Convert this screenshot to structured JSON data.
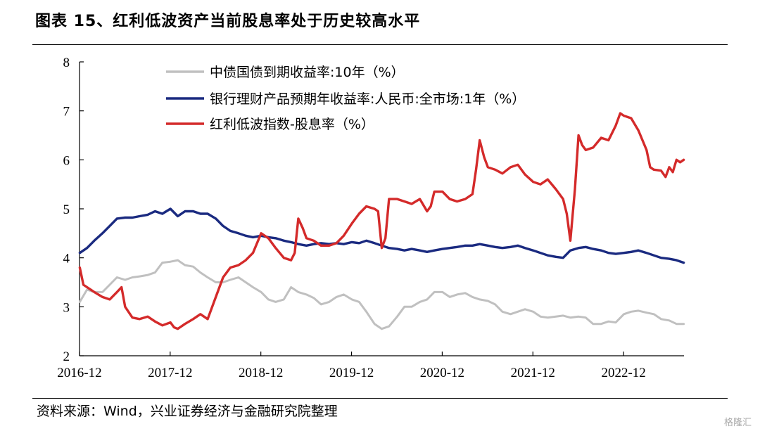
{
  "title": "图表 15、红利低波资产当前股息率处于历史较高水平",
  "source": "资料来源：Wind，兴业证券经济与金融研究院整理",
  "watermark": "格隆汇",
  "chart_data": {
    "type": "line",
    "xlabel": "",
    "ylabel": "",
    "ylim": [
      2,
      8
    ],
    "yticks": [
      "2",
      "3",
      "4",
      "5",
      "6",
      "7",
      "8"
    ],
    "xticks": [
      "2016-12",
      "2017-12",
      "2018-12",
      "2019-12",
      "2020-12",
      "2021-12",
      "2022-12"
    ],
    "xlim": [
      2016.917,
      2023.583
    ],
    "grid": false,
    "legend_position": "top-center",
    "series": [
      {
        "name": "中债国债到期收益率:10年（%）",
        "color": "#c0c0c0",
        "points": [
          [
            2016.92,
            3.1
          ],
          [
            2017.0,
            3.35
          ],
          [
            2017.08,
            3.3
          ],
          [
            2017.17,
            3.3
          ],
          [
            2017.25,
            3.45
          ],
          [
            2017.33,
            3.6
          ],
          [
            2017.42,
            3.55
          ],
          [
            2017.5,
            3.6
          ],
          [
            2017.58,
            3.62
          ],
          [
            2017.67,
            3.65
          ],
          [
            2017.75,
            3.7
          ],
          [
            2017.83,
            3.9
          ],
          [
            2017.92,
            3.92
          ],
          [
            2018.0,
            3.95
          ],
          [
            2018.08,
            3.85
          ],
          [
            2018.17,
            3.82
          ],
          [
            2018.25,
            3.7
          ],
          [
            2018.33,
            3.6
          ],
          [
            2018.42,
            3.5
          ],
          [
            2018.5,
            3.5
          ],
          [
            2018.58,
            3.55
          ],
          [
            2018.67,
            3.6
          ],
          [
            2018.75,
            3.5
          ],
          [
            2018.83,
            3.4
          ],
          [
            2018.92,
            3.3
          ],
          [
            2019.0,
            3.15
          ],
          [
            2019.08,
            3.1
          ],
          [
            2019.17,
            3.15
          ],
          [
            2019.25,
            3.4
          ],
          [
            2019.33,
            3.3
          ],
          [
            2019.42,
            3.25
          ],
          [
            2019.5,
            3.18
          ],
          [
            2019.58,
            3.05
          ],
          [
            2019.67,
            3.1
          ],
          [
            2019.75,
            3.2
          ],
          [
            2019.83,
            3.25
          ],
          [
            2019.92,
            3.15
          ],
          [
            2020.0,
            3.1
          ],
          [
            2020.08,
            2.9
          ],
          [
            2020.17,
            2.65
          ],
          [
            2020.25,
            2.55
          ],
          [
            2020.33,
            2.6
          ],
          [
            2020.42,
            2.8
          ],
          [
            2020.5,
            3.0
          ],
          [
            2020.58,
            3.0
          ],
          [
            2020.67,
            3.1
          ],
          [
            2020.75,
            3.15
          ],
          [
            2020.83,
            3.3
          ],
          [
            2020.92,
            3.3
          ],
          [
            2021.0,
            3.2
          ],
          [
            2021.08,
            3.25
          ],
          [
            2021.17,
            3.28
          ],
          [
            2021.25,
            3.2
          ],
          [
            2021.33,
            3.15
          ],
          [
            2021.42,
            3.12
          ],
          [
            2021.5,
            3.05
          ],
          [
            2021.58,
            2.9
          ],
          [
            2021.67,
            2.85
          ],
          [
            2021.75,
            2.9
          ],
          [
            2021.83,
            2.95
          ],
          [
            2021.92,
            2.9
          ],
          [
            2022.0,
            2.8
          ],
          [
            2022.08,
            2.78
          ],
          [
            2022.17,
            2.8
          ],
          [
            2022.25,
            2.82
          ],
          [
            2022.33,
            2.78
          ],
          [
            2022.42,
            2.8
          ],
          [
            2022.5,
            2.78
          ],
          [
            2022.58,
            2.65
          ],
          [
            2022.67,
            2.65
          ],
          [
            2022.75,
            2.7
          ],
          [
            2022.83,
            2.68
          ],
          [
            2022.92,
            2.85
          ],
          [
            2023.0,
            2.9
          ],
          [
            2023.08,
            2.92
          ],
          [
            2023.17,
            2.88
          ],
          [
            2023.25,
            2.85
          ],
          [
            2023.33,
            2.75
          ],
          [
            2023.42,
            2.72
          ],
          [
            2023.5,
            2.65
          ],
          [
            2023.58,
            2.65
          ]
        ]
      },
      {
        "name": "银行理财产品预期年收益率:人民币:全市场:1年（%）",
        "color": "#1a2a80",
        "points": [
          [
            2016.92,
            4.1
          ],
          [
            2017.0,
            4.2
          ],
          [
            2017.08,
            4.35
          ],
          [
            2017.17,
            4.5
          ],
          [
            2017.25,
            4.65
          ],
          [
            2017.33,
            4.8
          ],
          [
            2017.42,
            4.82
          ],
          [
            2017.5,
            4.82
          ],
          [
            2017.58,
            4.85
          ],
          [
            2017.67,
            4.88
          ],
          [
            2017.75,
            4.95
          ],
          [
            2017.83,
            4.9
          ],
          [
            2017.92,
            5.0
          ],
          [
            2018.0,
            4.85
          ],
          [
            2018.08,
            4.95
          ],
          [
            2018.17,
            4.95
          ],
          [
            2018.25,
            4.9
          ],
          [
            2018.33,
            4.9
          ],
          [
            2018.42,
            4.8
          ],
          [
            2018.5,
            4.65
          ],
          [
            2018.58,
            4.55
          ],
          [
            2018.67,
            4.5
          ],
          [
            2018.75,
            4.45
          ],
          [
            2018.83,
            4.42
          ],
          [
            2018.92,
            4.45
          ],
          [
            2019.0,
            4.42
          ],
          [
            2019.08,
            4.4
          ],
          [
            2019.17,
            4.35
          ],
          [
            2019.25,
            4.32
          ],
          [
            2019.33,
            4.28
          ],
          [
            2019.42,
            4.25
          ],
          [
            2019.5,
            4.28
          ],
          [
            2019.58,
            4.3
          ],
          [
            2019.67,
            4.28
          ],
          [
            2019.75,
            4.3
          ],
          [
            2019.83,
            4.28
          ],
          [
            2019.92,
            4.32
          ],
          [
            2020.0,
            4.3
          ],
          [
            2020.08,
            4.35
          ],
          [
            2020.17,
            4.3
          ],
          [
            2020.25,
            4.25
          ],
          [
            2020.33,
            4.2
          ],
          [
            2020.42,
            4.18
          ],
          [
            2020.5,
            4.15
          ],
          [
            2020.58,
            4.18
          ],
          [
            2020.67,
            4.15
          ],
          [
            2020.75,
            4.12
          ],
          [
            2020.83,
            4.15
          ],
          [
            2020.92,
            4.18
          ],
          [
            2021.0,
            4.2
          ],
          [
            2021.08,
            4.22
          ],
          [
            2021.17,
            4.25
          ],
          [
            2021.25,
            4.25
          ],
          [
            2021.33,
            4.28
          ],
          [
            2021.42,
            4.25
          ],
          [
            2021.5,
            4.22
          ],
          [
            2021.58,
            4.2
          ],
          [
            2021.67,
            4.22
          ],
          [
            2021.75,
            4.25
          ],
          [
            2021.83,
            4.2
          ],
          [
            2021.92,
            4.15
          ],
          [
            2022.0,
            4.1
          ],
          [
            2022.08,
            4.05
          ],
          [
            2022.17,
            4.02
          ],
          [
            2022.25,
            4.0
          ],
          [
            2022.33,
            4.15
          ],
          [
            2022.42,
            4.2
          ],
          [
            2022.5,
            4.22
          ],
          [
            2022.58,
            4.18
          ],
          [
            2022.67,
            4.15
          ],
          [
            2022.75,
            4.1
          ],
          [
            2022.83,
            4.08
          ],
          [
            2022.92,
            4.1
          ],
          [
            2023.0,
            4.12
          ],
          [
            2023.08,
            4.15
          ],
          [
            2023.17,
            4.1
          ],
          [
            2023.25,
            4.05
          ],
          [
            2023.33,
            4.0
          ],
          [
            2023.42,
            3.98
          ],
          [
            2023.5,
            3.95
          ],
          [
            2023.58,
            3.9
          ]
        ]
      },
      {
        "name": "红利低波指数-股息率（%）",
        "color": "#d42a2a",
        "points": [
          [
            2016.92,
            3.8
          ],
          [
            2016.96,
            3.45
          ],
          [
            2017.08,
            3.3
          ],
          [
            2017.17,
            3.2
          ],
          [
            2017.25,
            3.15
          ],
          [
            2017.33,
            3.3
          ],
          [
            2017.38,
            3.4
          ],
          [
            2017.42,
            3.0
          ],
          [
            2017.5,
            2.78
          ],
          [
            2017.58,
            2.75
          ],
          [
            2017.67,
            2.8
          ],
          [
            2017.75,
            2.7
          ],
          [
            2017.83,
            2.62
          ],
          [
            2017.92,
            2.68
          ],
          [
            2017.96,
            2.58
          ],
          [
            2018.0,
            2.55
          ],
          [
            2018.08,
            2.65
          ],
          [
            2018.17,
            2.75
          ],
          [
            2018.25,
            2.85
          ],
          [
            2018.33,
            2.75
          ],
          [
            2018.42,
            3.2
          ],
          [
            2018.5,
            3.6
          ],
          [
            2018.58,
            3.8
          ],
          [
            2018.67,
            3.85
          ],
          [
            2018.75,
            3.95
          ],
          [
            2018.83,
            4.1
          ],
          [
            2018.92,
            4.5
          ],
          [
            2019.0,
            4.4
          ],
          [
            2019.08,
            4.2
          ],
          [
            2019.17,
            4.0
          ],
          [
            2019.25,
            3.95
          ],
          [
            2019.29,
            4.1
          ],
          [
            2019.33,
            4.8
          ],
          [
            2019.38,
            4.6
          ],
          [
            2019.42,
            4.4
          ],
          [
            2019.5,
            4.35
          ],
          [
            2019.58,
            4.25
          ],
          [
            2019.67,
            4.25
          ],
          [
            2019.75,
            4.3
          ],
          [
            2019.83,
            4.45
          ],
          [
            2019.92,
            4.7
          ],
          [
            2020.0,
            4.9
          ],
          [
            2020.08,
            5.05
          ],
          [
            2020.17,
            5.0
          ],
          [
            2020.21,
            4.95
          ],
          [
            2020.25,
            4.2
          ],
          [
            2020.29,
            4.4
          ],
          [
            2020.33,
            5.2
          ],
          [
            2020.42,
            5.2
          ],
          [
            2020.5,
            5.15
          ],
          [
            2020.58,
            5.1
          ],
          [
            2020.67,
            5.2
          ],
          [
            2020.75,
            4.95
          ],
          [
            2020.79,
            5.05
          ],
          [
            2020.83,
            5.35
          ],
          [
            2020.92,
            5.35
          ],
          [
            2021.0,
            5.2
          ],
          [
            2021.08,
            5.15
          ],
          [
            2021.17,
            5.2
          ],
          [
            2021.25,
            5.3
          ],
          [
            2021.29,
            5.8
          ],
          [
            2021.33,
            6.4
          ],
          [
            2021.38,
            6.05
          ],
          [
            2021.42,
            5.85
          ],
          [
            2021.5,
            5.8
          ],
          [
            2021.58,
            5.72
          ],
          [
            2021.67,
            5.85
          ],
          [
            2021.75,
            5.9
          ],
          [
            2021.83,
            5.7
          ],
          [
            2021.92,
            5.55
          ],
          [
            2022.0,
            5.5
          ],
          [
            2022.08,
            5.6
          ],
          [
            2022.17,
            5.4
          ],
          [
            2022.25,
            5.2
          ],
          [
            2022.29,
            4.9
          ],
          [
            2022.33,
            4.35
          ],
          [
            2022.38,
            5.4
          ],
          [
            2022.42,
            6.5
          ],
          [
            2022.46,
            6.3
          ],
          [
            2022.5,
            6.2
          ],
          [
            2022.58,
            6.25
          ],
          [
            2022.67,
            6.45
          ],
          [
            2022.75,
            6.4
          ],
          [
            2022.83,
            6.7
          ],
          [
            2022.88,
            6.95
          ],
          [
            2022.92,
            6.9
          ],
          [
            2023.0,
            6.85
          ],
          [
            2023.08,
            6.6
          ],
          [
            2023.17,
            6.2
          ],
          [
            2023.21,
            5.85
          ],
          [
            2023.25,
            5.8
          ],
          [
            2023.33,
            5.78
          ],
          [
            2023.38,
            5.65
          ],
          [
            2023.42,
            5.85
          ],
          [
            2023.46,
            5.75
          ],
          [
            2023.5,
            6.0
          ],
          [
            2023.54,
            5.95
          ],
          [
            2023.58,
            6.0
          ]
        ]
      }
    ]
  }
}
